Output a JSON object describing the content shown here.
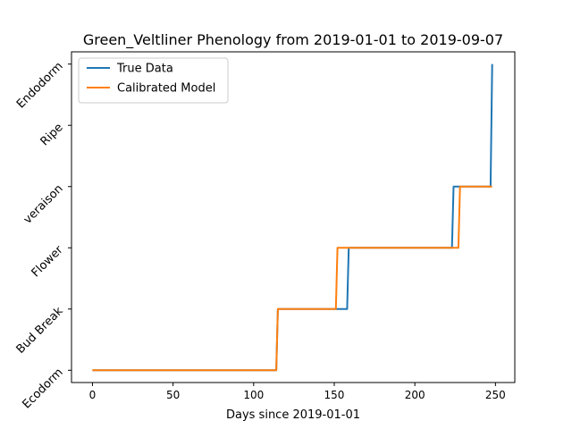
{
  "chart_data": {
    "type": "line",
    "title": "Green_Veltliner Phenology from 2019-01-01 to 2019-09-07",
    "xlabel": "Days since 2019-01-01",
    "ylabel": "",
    "xlim": [
      -13,
      262
    ],
    "ylim": [
      -0.2,
      5.2
    ],
    "x_ticks": [
      0,
      50,
      100,
      150,
      200,
      250
    ],
    "x_tick_labels": [
      "0",
      "50",
      "100",
      "150",
      "200",
      "250"
    ],
    "y_ticks": [
      0,
      1,
      2,
      3,
      4,
      5
    ],
    "y_tick_labels": [
      "Ecodorm",
      "Bud Break",
      "Flower",
      "veraison",
      "Ripe",
      "Endodorm"
    ],
    "grid": false,
    "legend_position": "top-left",
    "series": [
      {
        "name": "True Data",
        "color": "#1f77b4",
        "points": [
          [
            0,
            0
          ],
          [
            114,
            0
          ],
          [
            115,
            1
          ],
          [
            158,
            1
          ],
          [
            159,
            2
          ],
          [
            223,
            2
          ],
          [
            224,
            3
          ],
          [
            247,
            3
          ],
          [
            248,
            5
          ]
        ]
      },
      {
        "name": "Calibrated Model",
        "color": "#ff7f0e",
        "points": [
          [
            0,
            0
          ],
          [
            114,
            0
          ],
          [
            115,
            1
          ],
          [
            151,
            1
          ],
          [
            152,
            2
          ],
          [
            227,
            2
          ],
          [
            228,
            3
          ],
          [
            248,
            3
          ]
        ]
      }
    ]
  }
}
